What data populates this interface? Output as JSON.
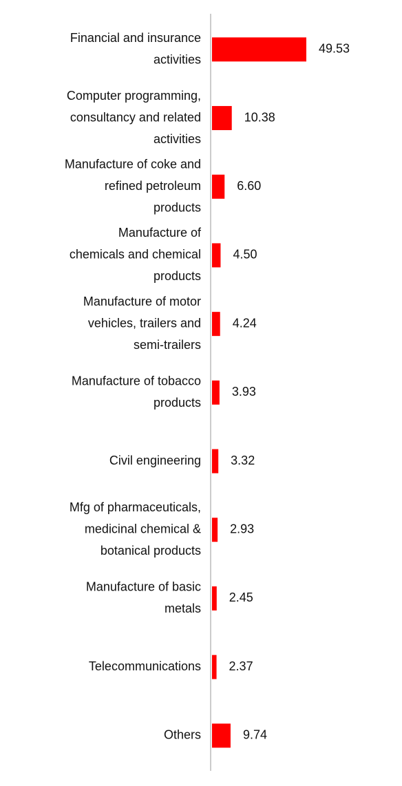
{
  "chart_data": {
    "type": "bar",
    "orientation": "horizontal",
    "categories": [
      [
        "Financial and insurance",
        "activities"
      ],
      [
        "Computer programming,",
        "consultancy and related",
        "activities"
      ],
      [
        "Manufacture of coke and",
        "refined petroleum",
        "products"
      ],
      [
        "Manufacture of",
        "chemicals and chemical",
        "products"
      ],
      [
        "Manufacture of motor",
        "vehicles, trailers and",
        "semi-trailers"
      ],
      [
        "Manufacture of tobacco",
        "products"
      ],
      [
        "Civil engineering"
      ],
      [
        "Mfg of pharmaceuticals,",
        "medicinal chemical &",
        "botanical products"
      ],
      [
        "Manufacture of basic",
        "metals"
      ],
      [
        "Telecommunications"
      ],
      [
        "Others"
      ]
    ],
    "values": [
      49.53,
      10.38,
      6.6,
      4.5,
      4.24,
      3.93,
      3.32,
      2.93,
      2.45,
      2.37,
      9.74
    ],
    "value_labels": [
      "49.53",
      "10.38",
      "6.60",
      "4.50",
      "4.24",
      "3.93",
      "3.32",
      "2.93",
      "2.45",
      "2.37",
      "9.74"
    ],
    "bar_color": "#ff0000",
    "axis_color": "#cccccc",
    "title": "",
    "xlabel": "",
    "ylabel": "",
    "xlim": [
      0,
      50
    ],
    "grid": false,
    "legend": false,
    "data_labels": true
  }
}
